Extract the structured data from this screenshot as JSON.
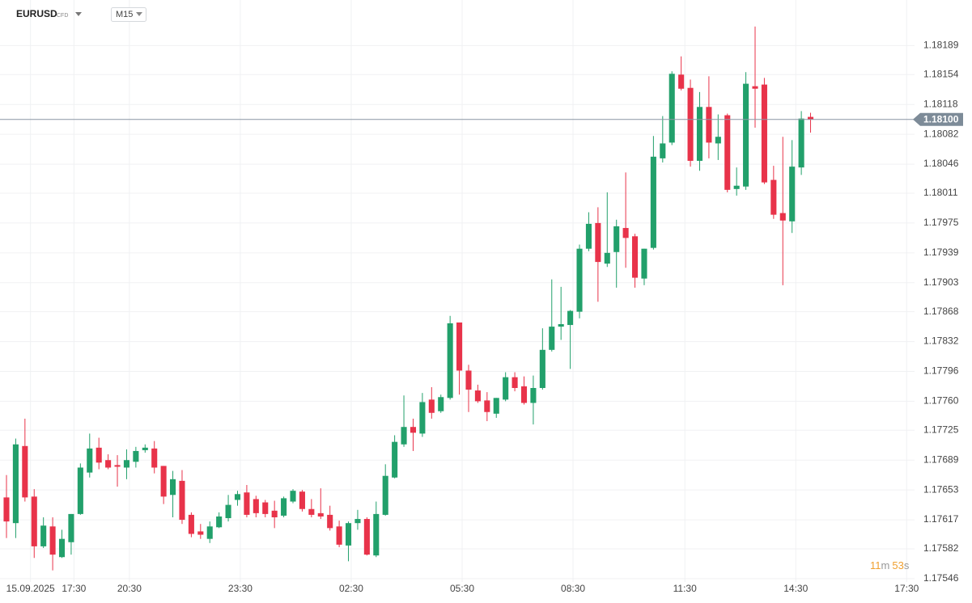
{
  "symbol": "EURUSD",
  "instrument_type": "CFD",
  "timeframe": "M15",
  "timer": [
    "11",
    "m",
    "53",
    "s"
  ],
  "chart_data": {
    "type": "candlestick",
    "up_color": "#22a06b",
    "down_color": "#e8334a",
    "grid": true,
    "last_price": {
      "value": 1.181,
      "label": "1.18100"
    },
    "ylim": [
      1.17542,
      1.18244
    ],
    "yticks": [
      1.18189,
      1.18154,
      1.18118,
      1.18082,
      1.18046,
      1.18011,
      1.17975,
      1.17939,
      1.17903,
      1.17868,
      1.17832,
      1.17796,
      {
        "value": 1.1776,
        "label": "1.17760"
      },
      1.17725,
      1.17689,
      1.17653,
      1.17617,
      1.17582,
      1.17546
    ],
    "xlim": [
      -0.7,
      98.25
    ],
    "xticks": [
      {
        "value": 2.6,
        "label": "15.09.2025"
      },
      {
        "value": 7.3,
        "label": "17:30"
      },
      {
        "value": 13.3,
        "label": "20:30"
      },
      {
        "value": 25.3,
        "label": "23:30"
      },
      {
        "value": 37.3,
        "label": "02:30"
      },
      {
        "value": 49.3,
        "label": "05:30"
      },
      {
        "value": 61.3,
        "label": "08:30"
      },
      {
        "value": 73.4,
        "label": "11:30"
      },
      {
        "value": 85.4,
        "label": "14:30"
      },
      {
        "value": 97.4,
        "label": "17:30"
      }
    ],
    "open": [
      1.17644,
      1.17613,
      1.17706,
      1.17645,
      1.17585,
      1.17609,
      1.17572,
      1.1759,
      1.17624,
      1.17674,
      1.17704,
      1.17689,
      1.17683,
      1.1768,
      1.17687,
      1.17701,
      1.17703,
      1.17682,
      1.17647,
      1.17664,
      1.17623,
      1.17603,
      1.17594,
      1.17608,
      1.17619,
      1.17641,
      1.1765,
      1.17642,
      1.17638,
      1.17628,
      1.17622,
      1.17639,
      1.17651,
      1.1763,
      1.17625,
      1.17623,
      1.17609,
      1.17586,
      1.17613,
      1.17618,
      1.17574,
      1.17623,
      1.17668,
      1.17708,
      1.17729,
      1.17721,
      1.17762,
      1.17748,
      1.17764,
      1.17855,
      1.17797,
      1.17773,
      1.17761,
      1.17745,
      1.17762,
      1.17789,
      1.17778,
      1.17758,
      1.17776,
      1.17822,
      1.1785,
      1.17852,
      1.17868,
      1.17944,
      1.17975,
      1.17926,
      1.1794,
      1.17969,
      1.17959,
      1.17908,
      1.17945,
      1.18053,
      1.18072,
      1.18154,
      1.18138,
      1.1805,
      1.18115,
      1.18071,
      1.18105,
      1.18016,
      1.18019,
      1.1814,
      1.18142,
      1.18027,
      1.17987,
      1.17977,
      1.18042,
      1.18103
    ],
    "high": [
      1.17671,
      1.17715,
      1.17739,
      1.17654,
      1.1762,
      1.1762,
      1.17605,
      1.17624,
      1.17685,
      1.17721,
      1.17716,
      1.17696,
      1.17695,
      1.17702,
      1.17705,
      1.17708,
      1.17712,
      1.17682,
      1.17676,
      1.17677,
      1.17626,
      1.17612,
      1.17615,
      1.17626,
      1.17647,
      1.17652,
      1.17659,
      1.17646,
      1.17641,
      1.1764,
      1.17645,
      1.17654,
      1.17653,
      1.17642,
      1.17655,
      1.17634,
      1.17616,
      1.17615,
      1.17629,
      1.1762,
      1.17639,
      1.17684,
      1.17719,
      1.17767,
      1.17739,
      1.1777,
      1.17777,
      1.17768,
      1.17863,
      1.17855,
      1.17804,
      1.1778,
      1.17771,
      1.17764,
      1.17795,
      1.17795,
      1.1779,
      1.17791,
      1.17848,
      1.17907,
      1.17898,
      1.1787,
      1.17949,
      1.17988,
      1.17994,
      1.18012,
      1.17979,
      1.18036,
      1.17962,
      1.17944,
      1.1808,
      1.18104,
      1.18158,
      1.18176,
      1.18148,
      1.18133,
      1.18152,
      1.18106,
      1.18107,
      1.18042,
      1.18157,
      1.18212,
      1.1815,
      1.18044,
      1.18079,
      1.18075,
      1.1811,
      1.18108
    ],
    "low": [
      1.17595,
      1.17595,
      1.17639,
      1.17571,
      1.17583,
      1.17556,
      1.17571,
      1.17575,
      1.17623,
      1.17668,
      1.17678,
      1.17678,
      1.17657,
      1.17666,
      1.1768,
      1.17698,
      1.17673,
      1.17636,
      1.1762,
      1.17612,
      1.17596,
      1.17594,
      1.17589,
      1.17607,
      1.17615,
      1.17634,
      1.1762,
      1.1762,
      1.1762,
      1.17607,
      1.1762,
      1.17637,
      1.17627,
      1.1762,
      1.17618,
      1.17604,
      1.17584,
      1.17567,
      1.17605,
      1.17574,
      1.17572,
      1.17622,
      1.17667,
      1.17705,
      1.177,
      1.17717,
      1.17739,
      1.17746,
      1.17762,
      1.17768,
      1.17747,
      1.17758,
      1.17736,
      1.1774,
      1.1776,
      1.17772,
      1.17756,
      1.17732,
      1.17774,
      1.1782,
      1.17834,
      1.17799,
      1.1786,
      1.17941,
      1.1788,
      1.17922,
      1.17897,
      1.17921,
      1.17897,
      1.179,
      1.17943,
      1.18048,
      1.18069,
      1.18135,
      1.18043,
      1.18038,
      1.18053,
      1.18051,
      1.18012,
      1.18008,
      1.18015,
      1.1809,
      1.18022,
      1.1798,
      1.179,
      1.17963,
      1.18033,
      1.18084
    ],
    "close": [
      1.17615,
      1.17708,
      1.17644,
      1.17585,
      1.1761,
      1.17575,
      1.17594,
      1.17624,
      1.1768,
      1.17703,
      1.17686,
      1.1768,
      1.17681,
      1.17689,
      1.177,
      1.17704,
      1.1768,
      1.17645,
      1.17666,
      1.17617,
      1.176,
      1.17599,
      1.17609,
      1.17621,
      1.17635,
      1.17648,
      1.17623,
      1.17625,
      1.17624,
      1.1762,
      1.17643,
      1.17652,
      1.1763,
      1.17623,
      1.17621,
      1.17607,
      1.17587,
      1.17613,
      1.17618,
      1.17575,
      1.17624,
      1.1767,
      1.17711,
      1.17729,
      1.17722,
      1.17759,
      1.17746,
      1.17765,
      1.17854,
      1.17797,
      1.17774,
      1.1776,
      1.17747,
      1.17764,
      1.17789,
      1.17776,
      1.17758,
      1.17776,
      1.17822,
      1.1785,
      1.17853,
      1.17869,
      1.17944,
      1.17974,
      1.17928,
      1.17939,
      1.17971,
      1.17957,
      1.17909,
      1.17944,
      1.18055,
      1.18071,
      1.18155,
      1.18137,
      1.1805,
      1.18115,
      1.18072,
      1.18079,
      1.18015,
      1.1802,
      1.18143,
      1.18137,
      1.18024,
      1.17985,
      1.17978,
      1.18043,
      1.18101,
      1.181
    ]
  }
}
